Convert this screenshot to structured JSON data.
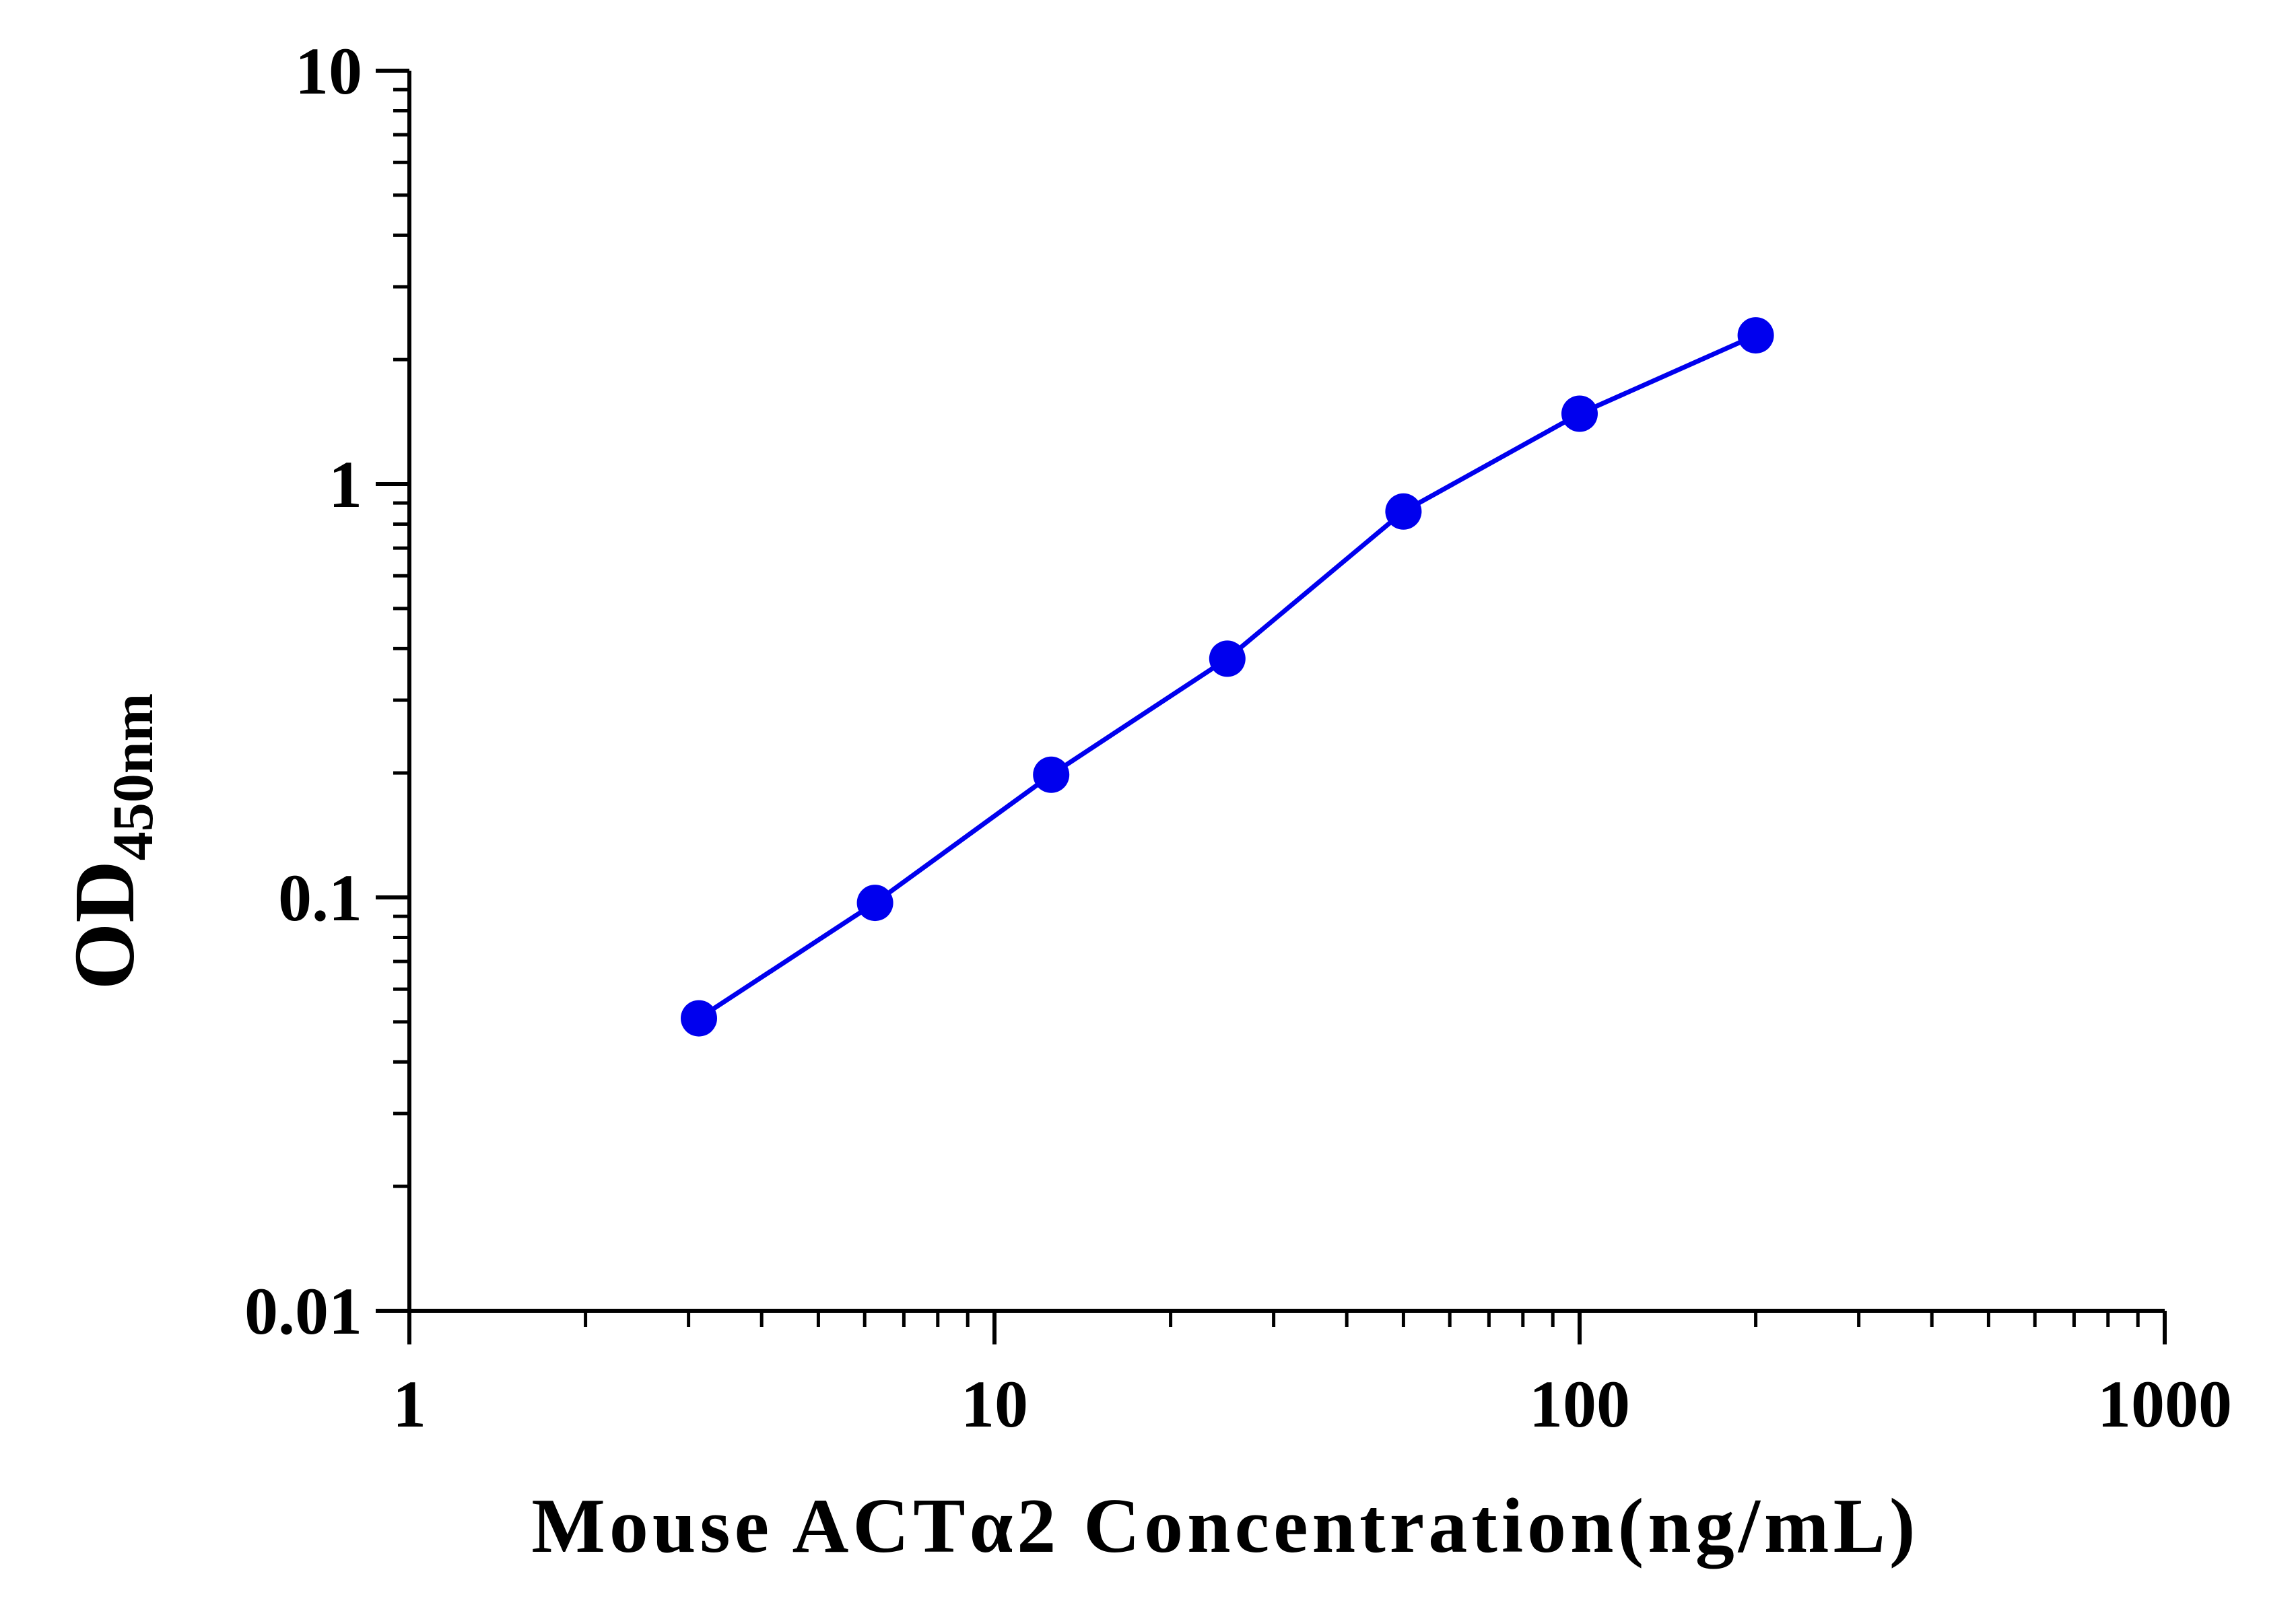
{
  "chart_data": {
    "type": "line",
    "xlabel": "Mouse ACTα2 Concentration(ng/mL)",
    "ylabel": {
      "main": "OD",
      "subscript": "450nm"
    },
    "x_scale": "log",
    "y_scale": "log",
    "xlim": [
      1,
      1000
    ],
    "ylim": [
      0.01,
      10
    ],
    "x_ticks": [
      1,
      10,
      100,
      1000
    ],
    "x_tick_labels": [
      "1",
      "10",
      "100",
      "1000"
    ],
    "y_ticks": [
      0.01,
      0.1,
      1,
      10
    ],
    "y_tick_labels": [
      "0.01",
      "0.1",
      "1",
      "10"
    ],
    "grid": false,
    "legend": "none",
    "series": [
      {
        "color": "#0000ee",
        "marker": "circle",
        "x": [
          3.125,
          6.25,
          12.5,
          25,
          50,
          100,
          200
        ],
        "y": [
          0.051,
          0.097,
          0.198,
          0.378,
          0.858,
          1.48,
          2.29
        ]
      }
    ]
  }
}
